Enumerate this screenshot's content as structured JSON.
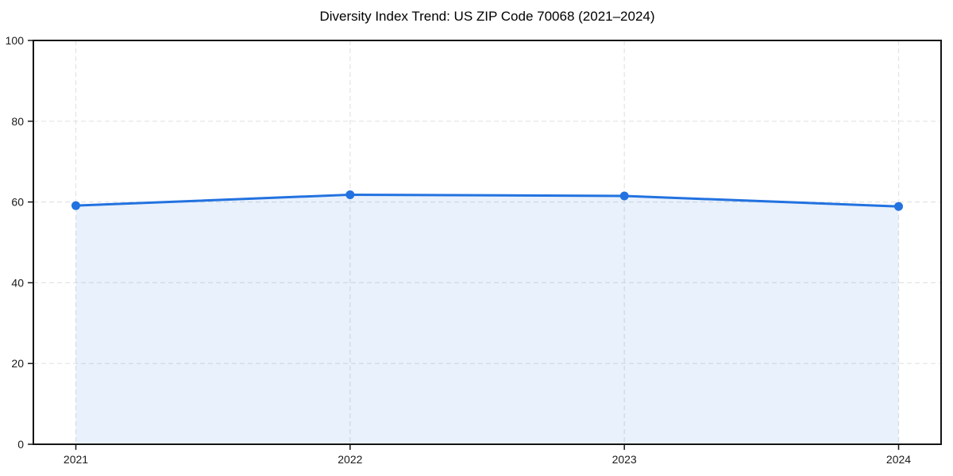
{
  "chart_data": {
    "type": "area",
    "title": "Diversity Index Trend: US ZIP Code 70068 (2021–2024)",
    "x": [
      "2021",
      "2022",
      "2023",
      "2024"
    ],
    "series": [
      {
        "name": "Diversity Index",
        "values": [
          59.1,
          61.8,
          61.5,
          58.9
        ]
      }
    ],
    "xlabel": "",
    "ylabel": "",
    "ylim": [
      0,
      100
    ],
    "yticks": [
      0,
      20,
      40,
      60,
      80,
      100
    ],
    "grid": true,
    "grid_style": "dashed",
    "legend": "none",
    "colors": {
      "line": "#2272e0",
      "marker": "#2272e0",
      "fill": "rgba(34,114,224,0.10)",
      "grid": "#e3e3e3",
      "axis": "#141414",
      "tick_label": "#1a1a1a",
      "background": "#ffffff"
    }
  }
}
